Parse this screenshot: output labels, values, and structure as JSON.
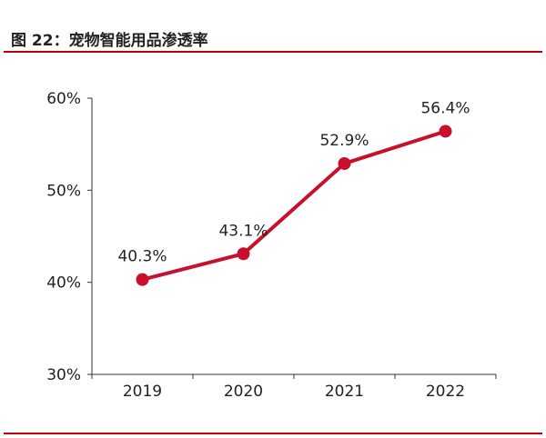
{
  "figure": {
    "title": "图 22：宠物智能用品渗透率",
    "accent_color": "#c00000"
  },
  "chart_data": {
    "type": "line",
    "title": "",
    "xlabel": "",
    "ylabel": "",
    "categories": [
      "2019",
      "2020",
      "2021",
      "2022"
    ],
    "values": [
      40.3,
      43.1,
      52.9,
      56.4
    ],
    "data_labels": [
      "40.3%",
      "43.1%",
      "52.9%",
      "56.4%"
    ],
    "ylim": [
      30,
      60
    ],
    "yticks": [
      30,
      40,
      50,
      60
    ],
    "ytick_labels": [
      "30%",
      "40%",
      "50%",
      "60%"
    ],
    "grid": false,
    "legend": "none",
    "line_color": "#c8102e"
  }
}
